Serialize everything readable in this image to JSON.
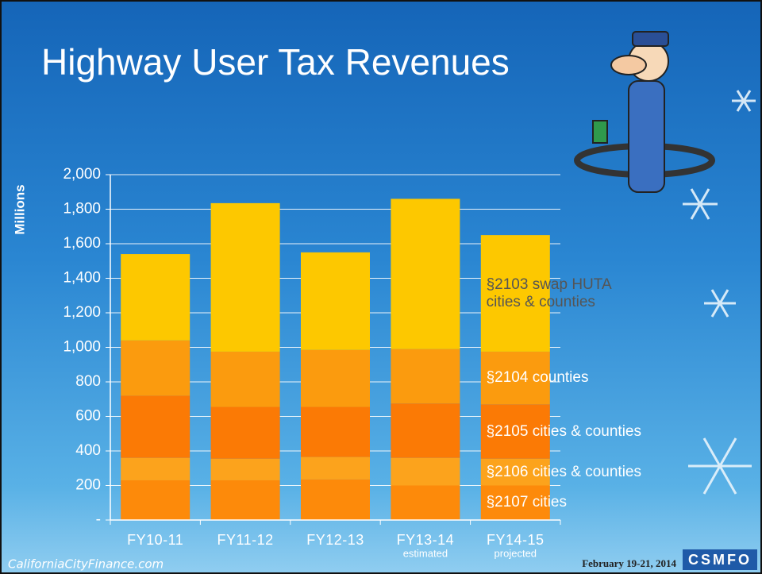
{
  "title": "Highway User Tax Revenues",
  "footer": {
    "left": "CaliforniaCityFinance.com",
    "right": "February 19-21, 2014",
    "logo": "CSMFO"
  },
  "chart_data": {
    "type": "stacked_bar",
    "y_label": "Millions",
    "categories": [
      "FY10-11",
      "FY11-12",
      "FY12-13",
      "FY13-14",
      "FY14-15"
    ],
    "category_notes": [
      null,
      null,
      null,
      "estimated",
      "projected"
    ],
    "ylim": [
      0,
      2000
    ],
    "yticks": [
      {
        "value": 0,
        "label": "-"
      },
      200,
      400,
      600,
      800,
      {
        "value": 1000,
        "label": "1,000"
      },
      {
        "value": 1200,
        "label": "1,200"
      },
      {
        "value": 1400,
        "label": "1,400"
      },
      {
        "value": 1600,
        "label": "1,600"
      },
      {
        "value": 1800,
        "label": "1,800"
      },
      {
        "value": 2000,
        "label": "2,000"
      }
    ],
    "grid": true,
    "series": [
      {
        "name": "§2107 cities",
        "color": "#fd8a0a",
        "label_color": "#ffffff",
        "values": [
          230,
          230,
          235,
          200,
          200
        ]
      },
      {
        "name": "§2106 cities & counties",
        "color": "#fca31c",
        "label_color": "#ffffff",
        "values": [
          130,
          125,
          130,
          160,
          155
        ]
      },
      {
        "name": "§2105 cities & counties",
        "color": "#fb7a05",
        "label_color": "#ffffff",
        "values": [
          360,
          300,
          290,
          315,
          315
        ]
      },
      {
        "name": "§2104 counties",
        "color": "#fb9b0e",
        "label_color": "#ffffff",
        "values": [
          320,
          320,
          330,
          315,
          305
        ]
      },
      {
        "name": "§2103 swap HUTA cities & counties",
        "color": "#fdc800",
        "label_color": "#555555",
        "values": [
          500,
          860,
          565,
          870,
          675
        ]
      }
    ]
  }
}
